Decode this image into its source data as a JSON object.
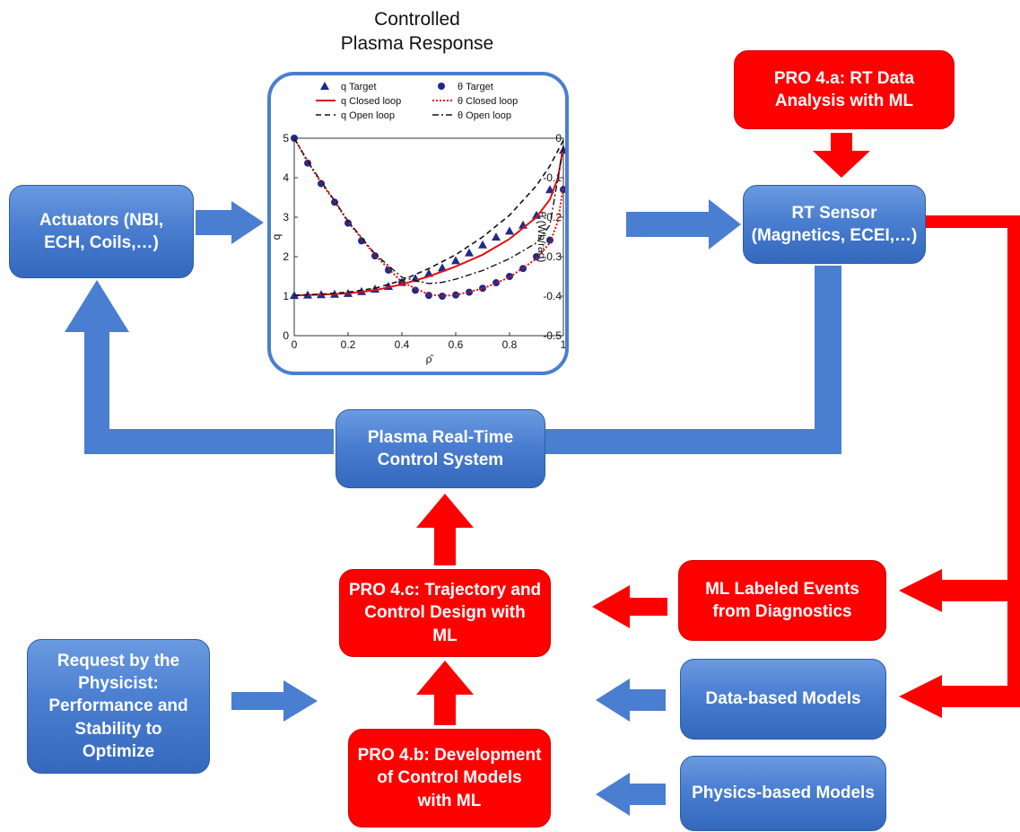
{
  "colors": {
    "blue": "#4a7ed0",
    "red": "#ff0000",
    "target_marker": "#1f2a8c",
    "q_closed": "#e01010",
    "theta_closed": "#e01010",
    "open_loop": "#111111"
  },
  "title": "Controlled\nPlasma Response",
  "boxes": {
    "actuators": "Actuators (NBI,\nECH, Coils,…)",
    "rt_sensor": "RT Sensor\n(Magnetics, ECEI,…)",
    "pro_4a": "PRO 4.a: RT Data\nAnalysis with ML",
    "rt_control": "Plasma Real-Time\nControl System",
    "pro_4c": "PRO 4.c: Trajectory and\nControl Design with\nML",
    "ml_labeled": "ML Labeled Events\nfrom Diagnostics",
    "request": "Request by the\nPhysicist:\nPerformance and\nStability to\nOptimize",
    "data_models": "Data-based Models",
    "pro_4b": "PRO 4.b: Development\nof Control Models\nwith ML",
    "physics_models": "Physics-based Models"
  },
  "chart_data": {
    "type": "line",
    "xlabel": "ρ̂",
    "ylabel": "q",
    "y2label": "θ (Wb/rad)",
    "xlim": [
      0,
      1
    ],
    "ylim": [
      0,
      5
    ],
    "y2lim": [
      -0.5,
      0
    ],
    "x_ticks": [
      "0",
      "0.2",
      "0.4",
      "0.6",
      "0.8",
      "1"
    ],
    "y_ticks": [
      "0",
      "1",
      "2",
      "3",
      "4",
      "5"
    ],
    "y2_ticks": [
      "0",
      "-0.1",
      "-0.2",
      "-0.3",
      "-0.4",
      "-0.5"
    ],
    "legend": "top",
    "series": [
      {
        "name": "q Target",
        "axis": "left",
        "style": "triangle",
        "x": [
          0.0,
          0.05,
          0.1,
          0.15,
          0.2,
          0.25,
          0.3,
          0.35,
          0.4,
          0.45,
          0.5,
          0.55,
          0.6,
          0.65,
          0.7,
          0.75,
          0.8,
          0.85,
          0.9,
          0.95,
          1.0
        ],
        "y": [
          1.02,
          1.03,
          1.04,
          1.05,
          1.07,
          1.12,
          1.18,
          1.25,
          1.35,
          1.45,
          1.58,
          1.72,
          1.9,
          2.1,
          2.3,
          2.5,
          2.65,
          2.8,
          3.05,
          3.7,
          4.7
        ]
      },
      {
        "name": "θ Target",
        "axis": "right",
        "style": "circle",
        "x": [
          0.0,
          0.05,
          0.1,
          0.15,
          0.2,
          0.25,
          0.3,
          0.35,
          0.4,
          0.45,
          0.5,
          0.55,
          0.6,
          0.65,
          0.7,
          0.75,
          0.8,
          0.85,
          0.9,
          0.95,
          1.0
        ],
        "y": [
          0.0,
          -0.063,
          -0.115,
          -0.162,
          -0.215,
          -0.26,
          -0.298,
          -0.334,
          -0.365,
          -0.385,
          -0.398,
          -0.4,
          -0.397,
          -0.39,
          -0.38,
          -0.366,
          -0.35,
          -0.33,
          -0.3,
          -0.258,
          -0.13
        ]
      },
      {
        "name": "q Closed loop",
        "axis": "left",
        "style": "solid",
        "x": [
          0.0,
          0.1,
          0.2,
          0.3,
          0.4,
          0.5,
          0.6,
          0.7,
          0.8,
          0.9,
          0.95,
          0.98,
          1.0
        ],
        "y": [
          1.02,
          1.04,
          1.07,
          1.15,
          1.3,
          1.5,
          1.75,
          2.05,
          2.45,
          3.0,
          3.45,
          4.0,
          4.8
        ]
      },
      {
        "name": "θ Closed loop",
        "axis": "right",
        "style": "dotted",
        "x": [
          0.0,
          0.05,
          0.1,
          0.15,
          0.2,
          0.3,
          0.4,
          0.5,
          0.55,
          0.6,
          0.7,
          0.8,
          0.9,
          0.95,
          0.98,
          1.0
        ],
        "y": [
          0.0,
          -0.06,
          -0.113,
          -0.16,
          -0.212,
          -0.296,
          -0.364,
          -0.396,
          -0.399,
          -0.397,
          -0.381,
          -0.352,
          -0.305,
          -0.265,
          -0.21,
          -0.12
        ]
      },
      {
        "name": "q Open loop",
        "axis": "left",
        "style": "dashed",
        "x": [
          0.0,
          0.1,
          0.2,
          0.3,
          0.4,
          0.5,
          0.6,
          0.7,
          0.8,
          0.9,
          0.95,
          1.0
        ],
        "y": [
          1.02,
          1.05,
          1.1,
          1.2,
          1.4,
          1.7,
          2.05,
          2.5,
          3.05,
          3.8,
          4.3,
          4.95
        ]
      },
      {
        "name": "θ Open loop",
        "axis": "right",
        "style": "dashdot",
        "x": [
          0.0,
          0.05,
          0.1,
          0.15,
          0.2,
          0.3,
          0.4,
          0.5,
          0.55,
          0.6,
          0.7,
          0.8,
          0.9,
          0.95,
          1.0
        ],
        "y": [
          0.0,
          -0.058,
          -0.11,
          -0.158,
          -0.21,
          -0.293,
          -0.352,
          -0.368,
          -0.365,
          -0.357,
          -0.335,
          -0.305,
          -0.265,
          -0.22,
          -0.02
        ]
      }
    ]
  }
}
